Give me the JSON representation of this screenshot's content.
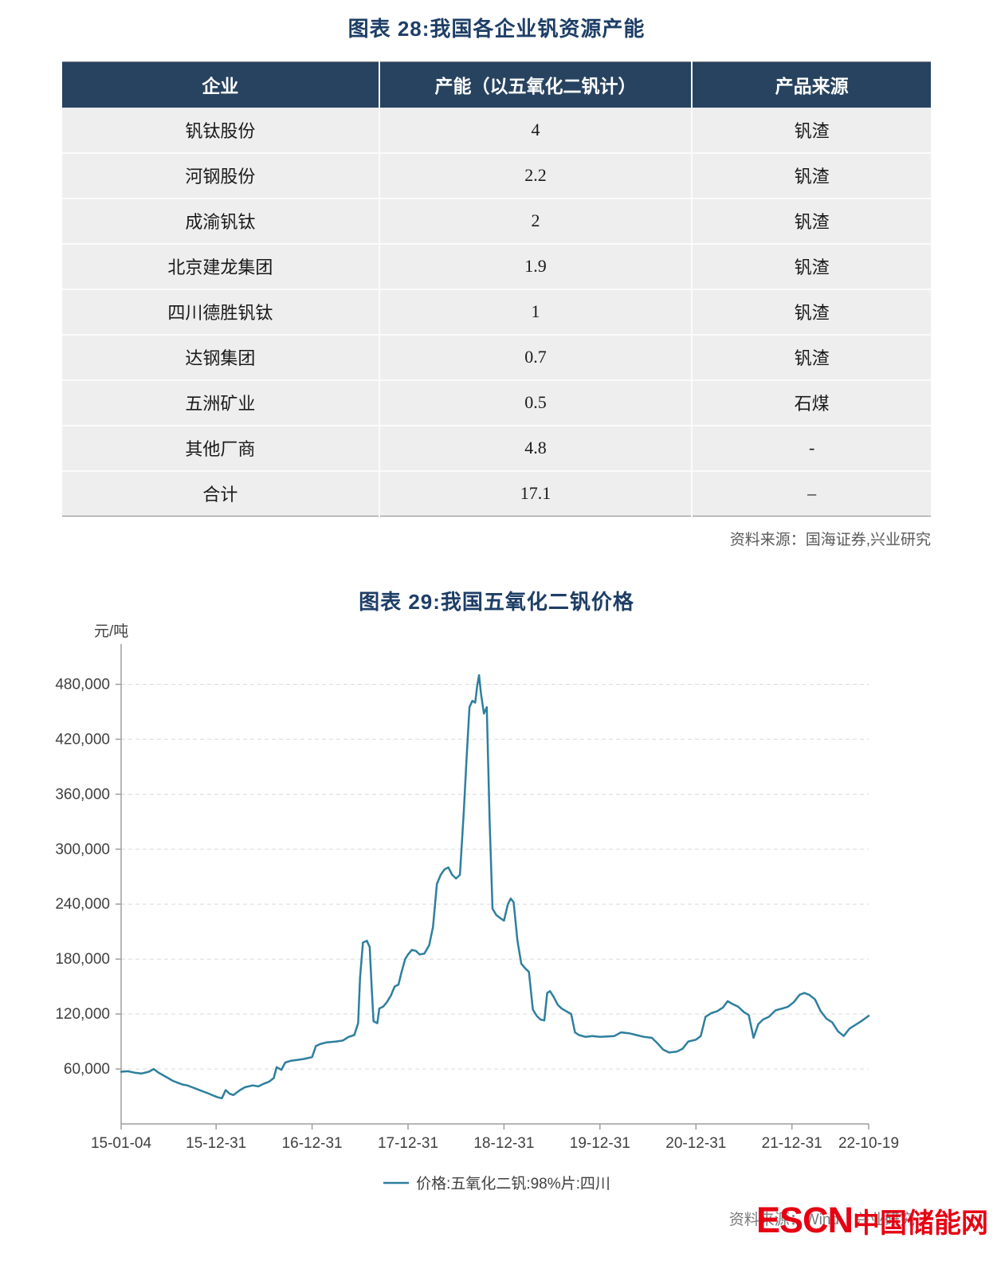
{
  "figure28": {
    "title": "图表 28:我国各企业钒资源产能",
    "source": "资料来源：国海证券,兴业研究",
    "table": {
      "headers": [
        "企业",
        "产能（以五氧化二钒计）",
        "产品来源"
      ],
      "rows": [
        [
          "钒钛股份",
          "4",
          "钒渣"
        ],
        [
          "河钢股份",
          "2.2",
          "钒渣"
        ],
        [
          "成渝钒钛",
          "2",
          "钒渣"
        ],
        [
          "北京建龙集团",
          "1.9",
          "钒渣"
        ],
        [
          "四川德胜钒钛",
          "1",
          "钒渣"
        ],
        [
          "达钢集团",
          "0.7",
          "钒渣"
        ],
        [
          "五洲矿业",
          "0.5",
          "石煤"
        ],
        [
          "其他厂商",
          "4.8",
          "-"
        ],
        [
          "合计",
          "17.1",
          "–"
        ]
      ]
    }
  },
  "figure29": {
    "title": "图表 29:我国五氧化二钒价格",
    "source": "资料来源：Wind，兴业研究",
    "watermark_en": "ESCN",
    "watermark_cn": "中国储能网"
  },
  "chart_data": {
    "type": "line",
    "title": "图表 29:我国五氧化二钒价格",
    "ylabel": "元/吨",
    "xlabel": "",
    "ylim": [
      0,
      510000
    ],
    "xlim": [
      2015.01,
      2022.8
    ],
    "grid": "horizontal-dashed",
    "legend_position": "bottom-center",
    "legend": "价格:五氧化二钒:98%片:四川",
    "line_color": "#2e7f9e",
    "y_ticks": [
      60000,
      120000,
      180000,
      240000,
      300000,
      360000,
      420000,
      480000
    ],
    "y_tick_labels": [
      "60,000",
      "120,000",
      "180,000",
      "240,000",
      "300,000",
      "360,000",
      "420,000",
      "480,000"
    ],
    "x_tick_positions": [
      2015.01,
      2016.0,
      2017.0,
      2018.0,
      2019.0,
      2020.0,
      2021.0,
      2022.0,
      2022.8
    ],
    "x_tick_labels": [
      "15-01-04",
      "15-12-31",
      "16-12-31",
      "17-12-31",
      "18-12-31",
      "19-12-31",
      "20-12-31",
      "21-12-31",
      "22-10-19"
    ],
    "series": [
      {
        "name": "价格:五氧化二钒:98%片:四川",
        "points": [
          [
            2015.01,
            57000
          ],
          [
            2015.08,
            57500
          ],
          [
            2015.15,
            56000
          ],
          [
            2015.22,
            55000
          ],
          [
            2015.3,
            57000
          ],
          [
            2015.35,
            60000
          ],
          [
            2015.4,
            56000
          ],
          [
            2015.45,
            53000
          ],
          [
            2015.5,
            50000
          ],
          [
            2015.55,
            47000
          ],
          [
            2015.6,
            45000
          ],
          [
            2015.65,
            43000
          ],
          [
            2015.7,
            42000
          ],
          [
            2015.75,
            40000
          ],
          [
            2015.8,
            38000
          ],
          [
            2015.85,
            36000
          ],
          [
            2015.9,
            34000
          ],
          [
            2015.97,
            31000
          ],
          [
            2016.02,
            29000
          ],
          [
            2016.06,
            28000
          ],
          [
            2016.1,
            37000
          ],
          [
            2016.14,
            33000
          ],
          [
            2016.18,
            31500
          ],
          [
            2016.25,
            37000
          ],
          [
            2016.3,
            40000
          ],
          [
            2016.38,
            42000
          ],
          [
            2016.44,
            41000
          ],
          [
            2016.5,
            44000
          ],
          [
            2016.55,
            46000
          ],
          [
            2016.6,
            50000
          ],
          [
            2016.63,
            62000
          ],
          [
            2016.68,
            59000
          ],
          [
            2016.72,
            67000
          ],
          [
            2016.78,
            69000
          ],
          [
            2016.85,
            70000
          ],
          [
            2016.92,
            71000
          ],
          [
            2017.0,
            73000
          ],
          [
            2017.04,
            85000
          ],
          [
            2017.08,
            87000
          ],
          [
            2017.15,
            89000
          ],
          [
            2017.25,
            90000
          ],
          [
            2017.32,
            91000
          ],
          [
            2017.38,
            95000
          ],
          [
            2017.44,
            97000
          ],
          [
            2017.48,
            110000
          ],
          [
            2017.5,
            160000
          ],
          [
            2017.53,
            198000
          ],
          [
            2017.57,
            200000
          ],
          [
            2017.6,
            193000
          ],
          [
            2017.62,
            150000
          ],
          [
            2017.64,
            112000
          ],
          [
            2017.68,
            110000
          ],
          [
            2017.7,
            126000
          ],
          [
            2017.74,
            128000
          ],
          [
            2017.78,
            133000
          ],
          [
            2017.82,
            140000
          ],
          [
            2017.86,
            150000
          ],
          [
            2017.9,
            152000
          ],
          [
            2017.93,
            165000
          ],
          [
            2017.97,
            180000
          ],
          [
            2018.0,
            185000
          ],
          [
            2018.04,
            190000
          ],
          [
            2018.08,
            189000
          ],
          [
            2018.12,
            185000
          ],
          [
            2018.17,
            186000
          ],
          [
            2018.22,
            195000
          ],
          [
            2018.26,
            215000
          ],
          [
            2018.3,
            262000
          ],
          [
            2018.34,
            272000
          ],
          [
            2018.38,
            278000
          ],
          [
            2018.42,
            280000
          ],
          [
            2018.46,
            272000
          ],
          [
            2018.5,
            268000
          ],
          [
            2018.54,
            272000
          ],
          [
            2018.58,
            340000
          ],
          [
            2018.61,
            400000
          ],
          [
            2018.64,
            455000
          ],
          [
            2018.67,
            462000
          ],
          [
            2018.7,
            460000
          ],
          [
            2018.72,
            478000
          ],
          [
            2018.74,
            490000
          ],
          [
            2018.76,
            470000
          ],
          [
            2018.79,
            448000
          ],
          [
            2018.82,
            455000
          ],
          [
            2018.85,
            330000
          ],
          [
            2018.88,
            235000
          ],
          [
            2018.92,
            228000
          ],
          [
            2018.97,
            224000
          ],
          [
            2019.0,
            222000
          ],
          [
            2019.04,
            240000
          ],
          [
            2019.07,
            246000
          ],
          [
            2019.1,
            242000
          ],
          [
            2019.14,
            200000
          ],
          [
            2019.18,
            175000
          ],
          [
            2019.22,
            170000
          ],
          [
            2019.26,
            166000
          ],
          [
            2019.3,
            125000
          ],
          [
            2019.34,
            118000
          ],
          [
            2019.38,
            114000
          ],
          [
            2019.42,
            113000
          ],
          [
            2019.45,
            143000
          ],
          [
            2019.48,
            145000
          ],
          [
            2019.52,
            138000
          ],
          [
            2019.56,
            130000
          ],
          [
            2019.6,
            126000
          ],
          [
            2019.65,
            123000
          ],
          [
            2019.7,
            120000
          ],
          [
            2019.74,
            100000
          ],
          [
            2019.78,
            97000
          ],
          [
            2019.85,
            95000
          ],
          [
            2019.92,
            96000
          ],
          [
            2020.0,
            95000
          ],
          [
            2020.08,
            95500
          ],
          [
            2020.15,
            96000
          ],
          [
            2020.22,
            100000
          ],
          [
            2020.3,
            99000
          ],
          [
            2020.38,
            97000
          ],
          [
            2020.46,
            95000
          ],
          [
            2020.54,
            94000
          ],
          [
            2020.6,
            88000
          ],
          [
            2020.66,
            81000
          ],
          [
            2020.72,
            78000
          ],
          [
            2020.8,
            79000
          ],
          [
            2020.86,
            82000
          ],
          [
            2020.92,
            90000
          ],
          [
            2021.0,
            92000
          ],
          [
            2021.05,
            96000
          ],
          [
            2021.1,
            117000
          ],
          [
            2021.16,
            121000
          ],
          [
            2021.22,
            123000
          ],
          [
            2021.28,
            127000
          ],
          [
            2021.33,
            134000
          ],
          [
            2021.38,
            131000
          ],
          [
            2021.44,
            128000
          ],
          [
            2021.5,
            122000
          ],
          [
            2021.55,
            119000
          ],
          [
            2021.6,
            94000
          ],
          [
            2021.65,
            109000
          ],
          [
            2021.7,
            114000
          ],
          [
            2021.76,
            117000
          ],
          [
            2021.83,
            124000
          ],
          [
            2021.9,
            126000
          ],
          [
            2021.96,
            128000
          ],
          [
            2022.02,
            133000
          ],
          [
            2022.08,
            141000
          ],
          [
            2022.13,
            143000
          ],
          [
            2022.18,
            141000
          ],
          [
            2022.24,
            136000
          ],
          [
            2022.3,
            123000
          ],
          [
            2022.36,
            115000
          ],
          [
            2022.42,
            111000
          ],
          [
            2022.48,
            101000
          ],
          [
            2022.54,
            96000
          ],
          [
            2022.6,
            104000
          ],
          [
            2022.66,
            108000
          ],
          [
            2022.72,
            112000
          ],
          [
            2022.76,
            115000
          ],
          [
            2022.8,
            118000
          ]
        ]
      }
    ]
  }
}
